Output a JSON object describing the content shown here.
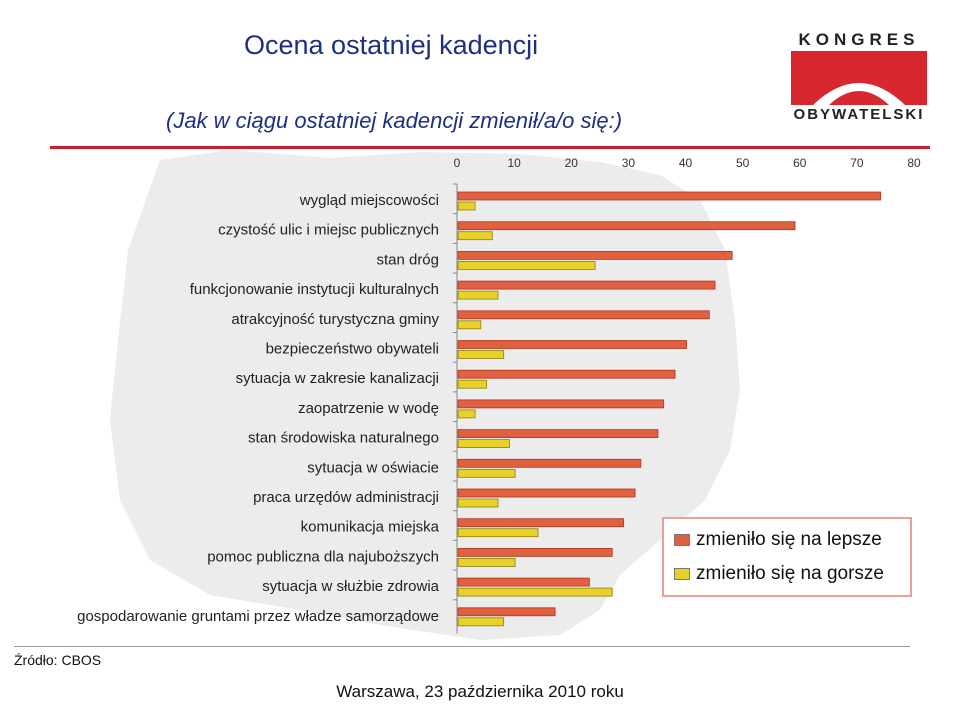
{
  "title": "Ocena ostatniej kadencji",
  "subtitle": "(Jak w ciągu ostatniej kadencji zmienił/a/o się:)",
  "logo": {
    "line1": "KONGRES",
    "line2": "OBYWATELSKI"
  },
  "source": "Źródło: CBOS",
  "footer": "Warszawa, 23 października 2010 roku",
  "colors": {
    "better": "#e0603f",
    "worse": "#e8d22a",
    "accent": "#c7202b"
  },
  "chart_data": {
    "type": "bar",
    "orientation": "horizontal",
    "categories": [
      "wygląd miejscowości",
      "czystość ulic i miejsc publicznych",
      "stan dróg",
      "funkcjonowanie instytucji kulturalnych",
      "atrakcyjność turystyczna gminy",
      "bezpieczeństwo obywateli",
      "sytuacja w zakresie kanalizacji",
      "zaopatrzenie w wodę",
      "stan środowiska naturalnego",
      "sytuacja w oświacie",
      "praca urzędów administracji",
      "komunikacja miejska",
      "pomoc publiczna dla najuboższych",
      "sytuacja w służbie zdrowia",
      "gospodarowanie gruntami przez władze samorządowe"
    ],
    "series": [
      {
        "name": "zmieniło się na lepsze",
        "values": [
          74,
          59,
          48,
          45,
          44,
          40,
          38,
          36,
          35,
          32,
          31,
          29,
          27,
          23,
          17
        ]
      },
      {
        "name": "zmieniło się na gorsze",
        "values": [
          3,
          6,
          24,
          7,
          4,
          8,
          5,
          3,
          9,
          10,
          7,
          14,
          10,
          27,
          8
        ]
      }
    ],
    "xticks": [
      "0",
      "10",
      "20",
      "30",
      "40",
      "50",
      "60",
      "70",
      "80"
    ],
    "xlim": [
      0,
      80
    ],
    "legend_position": "bottom-right",
    "grid": false
  }
}
